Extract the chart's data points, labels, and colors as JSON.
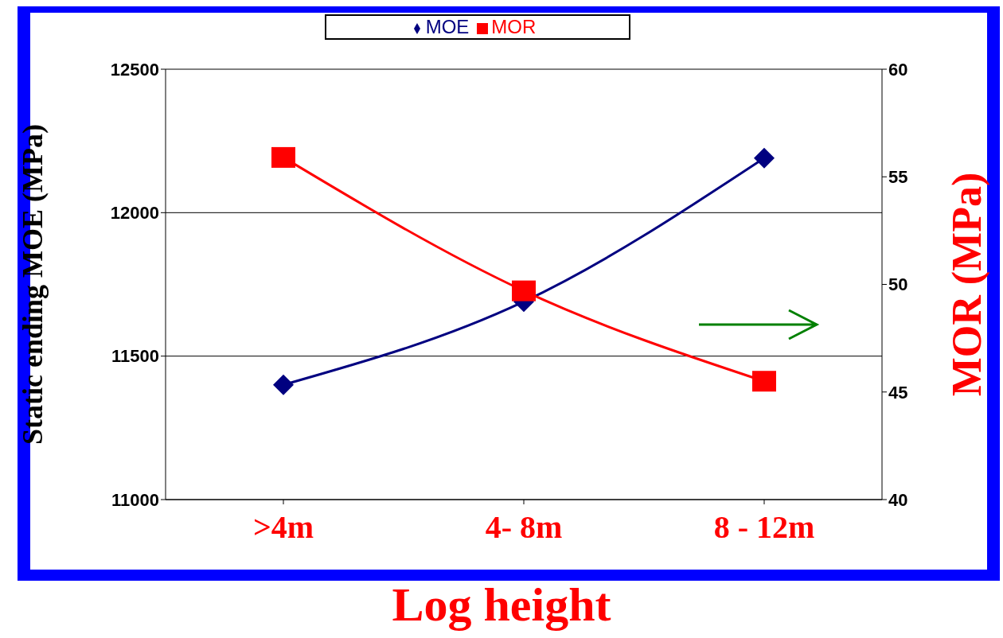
{
  "chart_data": {
    "type": "line",
    "xlabel": "Log height",
    "ylabel": "Static ending MOE (MPa)",
    "y2label": "MOR (MPa)",
    "categories": [
      ">4m",
      "4- 8m",
      "8 - 12m"
    ],
    "series": [
      {
        "name": "MOE",
        "color": "#000080",
        "values": [
          11400,
          11690,
          12190
        ],
        "marker": "diamond"
      },
      {
        "name": "MOR",
        "color": "#ff0000",
        "values": [
          55.9,
          49.7,
          45.5
        ],
        "marker": "square",
        "axis": "y2"
      }
    ],
    "ylim": [
      11000,
      12500
    ],
    "yticks": [
      11000,
      11500,
      12000,
      12500
    ],
    "y2lim": [
      40,
      60
    ],
    "y2ticks": [
      40,
      45,
      50,
      55,
      60
    ],
    "grid": "y",
    "legend": "top",
    "line_style": "solid"
  }
}
